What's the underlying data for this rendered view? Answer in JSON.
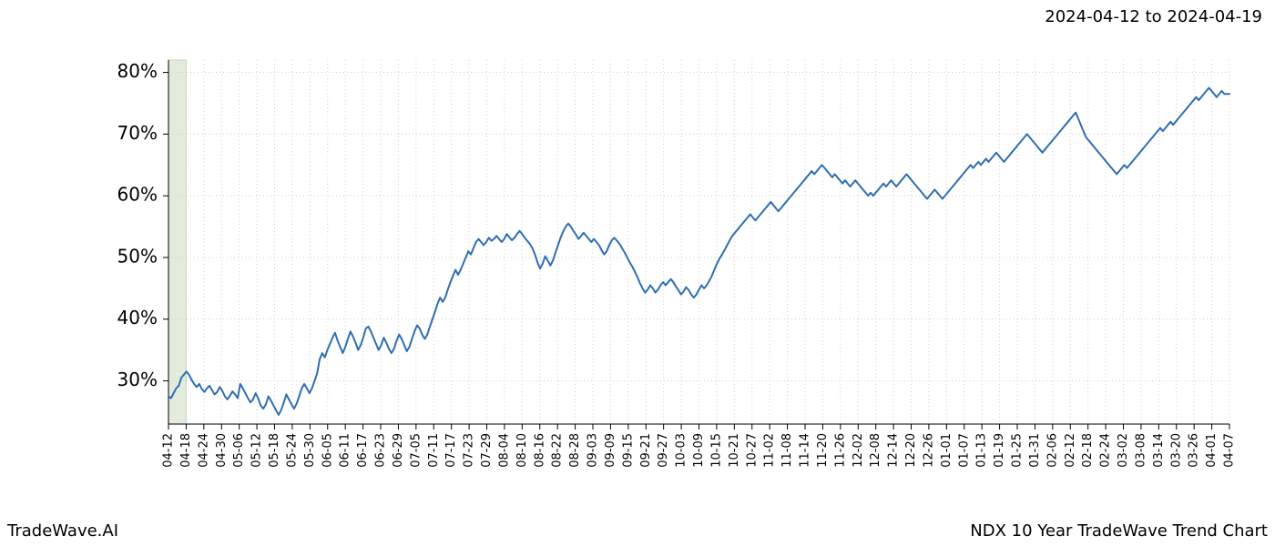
{
  "date_range_label": "2024-04-12 to 2024-04-19",
  "footer_left": "TradeWave.AI",
  "footer_right": "NDX 10 Year TradeWave Trend Chart",
  "chart": {
    "type": "line",
    "background_color": "#ffffff",
    "grid_color": "#cfcfcf",
    "grid_dash": "1,3",
    "axis_color": "#000000",
    "line_color": "#2f6fb2",
    "line_width": 2.0,
    "highlight_band": {
      "x_start_index": 0,
      "x_end_index": 1,
      "fill_color": "#e3ecdc",
      "stroke_color": "#c7d6bd"
    },
    "ylim": [
      23,
      82
    ],
    "yticks": [
      30,
      40,
      50,
      60,
      70,
      80
    ],
    "ytick_format": "percent",
    "xlim_index": [
      0,
      61
    ],
    "xticks": [
      "04-12",
      "04-18",
      "04-24",
      "04-30",
      "05-06",
      "05-12",
      "05-18",
      "05-24",
      "05-30",
      "06-05",
      "06-11",
      "06-17",
      "06-23",
      "06-29",
      "07-05",
      "07-11",
      "07-17",
      "07-23",
      "07-29",
      "08-04",
      "08-10",
      "08-16",
      "08-22",
      "08-28",
      "09-03",
      "09-09",
      "09-15",
      "09-21",
      "09-27",
      "10-03",
      "10-09",
      "10-15",
      "10-21",
      "10-27",
      "11-02",
      "11-08",
      "11-14",
      "11-20",
      "11-26",
      "12-02",
      "12-08",
      "12-14",
      "12-20",
      "12-26",
      "01-01",
      "01-07",
      "01-13",
      "01-19",
      "01-25",
      "01-31",
      "02-06",
      "02-12",
      "02-18",
      "02-24",
      "03-02",
      "03-08",
      "03-14",
      "03-20",
      "03-26",
      "04-01",
      "04-07"
    ],
    "label_fontsize_y": 20,
    "label_fontsize_x": 13,
    "series": [
      27.5,
      27.2,
      28.0,
      28.8,
      29.2,
      30.5,
      31.0,
      31.5,
      31.0,
      30.2,
      29.5,
      29.0,
      29.5,
      28.7,
      28.2,
      28.8,
      29.2,
      28.5,
      27.8,
      28.2,
      29.0,
      28.4,
      27.5,
      27.0,
      27.6,
      28.3,
      27.8,
      27.2,
      29.5,
      28.8,
      28.0,
      27.2,
      26.5,
      27.0,
      28.0,
      27.2,
      26.0,
      25.5,
      26.2,
      27.5,
      26.8,
      26.0,
      25.2,
      24.5,
      25.3,
      26.5,
      27.8,
      27.0,
      26.2,
      25.5,
      26.3,
      27.5,
      28.8,
      29.5,
      28.8,
      28.0,
      28.8,
      30.0,
      31.2,
      33.5,
      34.5,
      33.8,
      35.0,
      36.0,
      37.0,
      37.8,
      36.5,
      35.5,
      34.5,
      35.5,
      36.8,
      38.0,
      37.2,
      36.2,
      35.0,
      35.8,
      37.0,
      38.5,
      38.8,
      38.0,
      37.0,
      36.0,
      35.0,
      35.8,
      37.0,
      36.2,
      35.2,
      34.5,
      35.2,
      36.5,
      37.5,
      36.8,
      35.8,
      34.8,
      35.5,
      36.8,
      38.0,
      39.0,
      38.5,
      37.5,
      36.8,
      37.5,
      38.8,
      40.0,
      41.2,
      42.5,
      43.5,
      42.8,
      43.5,
      44.8,
      46.0,
      47.0,
      48.0,
      47.2,
      48.0,
      49.0,
      50.0,
      51.0,
      50.5,
      51.5,
      52.5,
      53.0,
      52.5,
      52.0,
      52.5,
      53.2,
      52.7,
      53.0,
      53.5,
      53.0,
      52.5,
      53.0,
      53.8,
      53.3,
      52.8,
      53.2,
      53.8,
      54.3,
      53.8,
      53.2,
      52.7,
      52.2,
      51.5,
      50.5,
      49.2,
      48.2,
      49.0,
      50.2,
      49.5,
      48.7,
      49.5,
      50.8,
      52.0,
      53.2,
      54.2,
      55.0,
      55.5,
      55.0,
      54.3,
      53.7,
      53.0,
      53.5,
      54.0,
      53.5,
      53.0,
      52.5,
      53.0,
      52.5,
      52.0,
      51.2,
      50.5,
      51.0,
      52.0,
      52.8,
      53.2,
      52.7,
      52.2,
      51.5,
      50.8,
      50.0,
      49.2,
      48.5,
      47.7,
      46.8,
      45.8,
      45.0,
      44.3,
      44.8,
      45.5,
      45.0,
      44.3,
      44.8,
      45.5,
      46.0,
      45.5,
      46.0,
      46.5,
      46.0,
      45.3,
      44.7,
      44.0,
      44.5,
      45.2,
      44.7,
      44.0,
      43.5,
      44.0,
      44.8,
      45.5,
      45.0,
      45.5,
      46.2,
      47.0,
      48.0,
      49.0,
      49.8,
      50.5,
      51.2,
      52.0,
      52.8,
      53.5,
      54.0,
      54.5,
      55.0,
      55.5,
      56.0,
      56.5,
      57.0,
      56.5,
      56.0,
      56.5,
      57.0,
      57.5,
      58.0,
      58.5,
      59.0,
      58.5,
      58.0,
      57.5,
      58.0,
      58.5,
      59.0,
      59.5,
      60.0,
      60.5,
      61.0,
      61.5,
      62.0,
      62.5,
      63.0,
      63.5,
      64.0,
      63.5,
      64.0,
      64.5,
      65.0,
      64.5,
      64.0,
      63.5,
      63.0,
      63.5,
      63.0,
      62.5,
      62.0,
      62.5,
      62.0,
      61.5,
      62.0,
      62.5,
      62.0,
      61.5,
      61.0,
      60.5,
      60.0,
      60.5,
      60.0,
      60.5,
      61.0,
      61.5,
      62.0,
      61.5,
      62.0,
      62.5,
      62.0,
      61.5,
      62.0,
      62.5,
      63.0,
      63.5,
      63.0,
      62.5,
      62.0,
      61.5,
      61.0,
      60.5,
      60.0,
      59.5,
      60.0,
      60.5,
      61.0,
      60.5,
      60.0,
      59.5,
      60.0,
      60.5,
      61.0,
      61.5,
      62.0,
      62.5,
      63.0,
      63.5,
      64.0,
      64.5,
      65.0,
      64.5,
      65.0,
      65.5,
      65.0,
      65.5,
      66.0,
      65.5,
      66.0,
      66.5,
      67.0,
      66.5,
      66.0,
      65.5,
      66.0,
      66.5,
      67.0,
      67.5,
      68.0,
      68.5,
      69.0,
      69.5,
      70.0,
      69.5,
      69.0,
      68.5,
      68.0,
      67.5,
      67.0,
      67.5,
      68.0,
      68.5,
      69.0,
      69.5,
      70.0,
      70.5,
      71.0,
      71.5,
      72.0,
      72.5,
      73.0,
      73.5,
      72.5,
      71.5,
      70.5,
      69.5,
      69.0,
      68.5,
      68.0,
      67.5,
      67.0,
      66.5,
      66.0,
      65.5,
      65.0,
      64.5,
      64.0,
      63.5,
      64.0,
      64.5,
      65.0,
      64.5,
      65.0,
      65.5,
      66.0,
      66.5,
      67.0,
      67.5,
      68.0,
      68.5,
      69.0,
      69.5,
      70.0,
      70.5,
      71.0,
      70.5,
      71.0,
      71.5,
      72.0,
      71.5,
      72.0,
      72.5,
      73.0,
      73.5,
      74.0,
      74.5,
      75.0,
      75.5,
      76.0,
      75.5,
      76.0,
      76.5,
      77.0,
      77.5,
      77.0,
      76.5,
      76.0,
      76.5,
      77.0,
      76.5,
      76.5,
      76.5
    ]
  }
}
